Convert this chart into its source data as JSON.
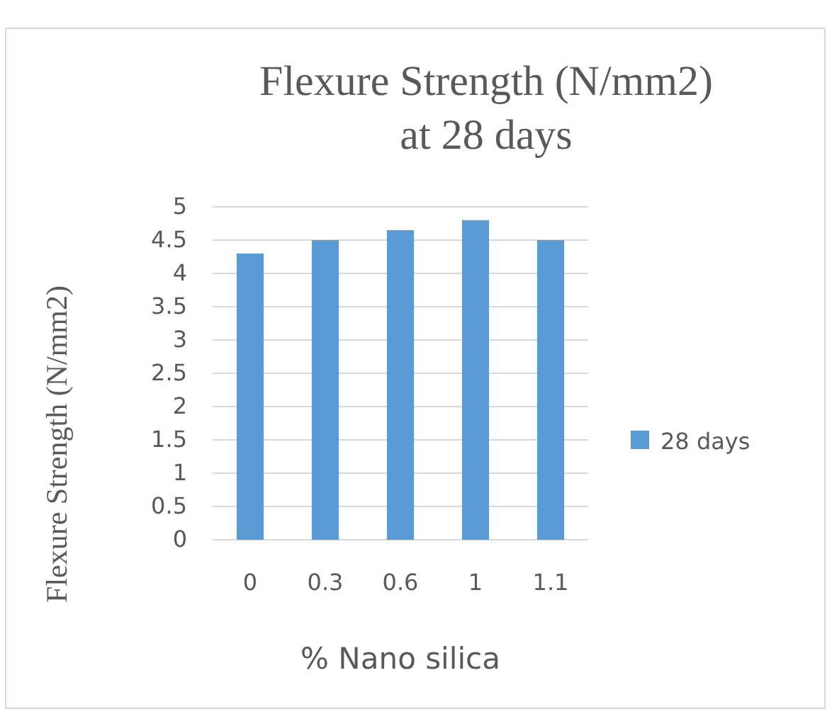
{
  "chart_data": {
    "type": "bar",
    "title": "Flexure  Strength (N/mm2)\nat 28 days",
    "xlabel": "% Nano silica",
    "ylabel": "Flexure  Strength (N/mm2)",
    "categories": [
      "0",
      "0.3",
      "0.6",
      "1",
      "1.1"
    ],
    "series": [
      {
        "name": "28 days",
        "color": "#5b9bd5",
        "values": [
          4.3,
          4.5,
          4.65,
          4.8,
          4.5
        ]
      }
    ],
    "ylim": [
      0,
      5
    ],
    "yticks": [
      0,
      0.5,
      1,
      1.5,
      2,
      2.5,
      3,
      3.5,
      4,
      4.5,
      5
    ],
    "grid": "y",
    "legend": "right"
  }
}
